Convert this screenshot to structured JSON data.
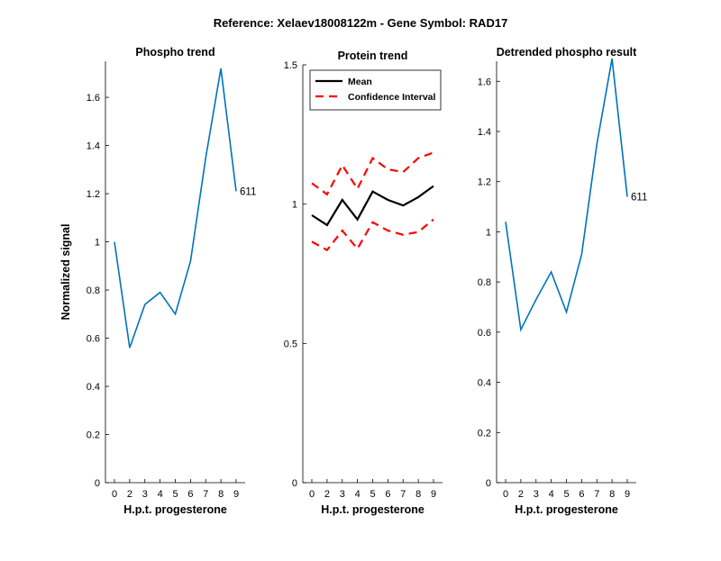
{
  "figure": {
    "suptitle": "Reference:  Xelaev18008122m - Gene Symbol:  RAD17"
  },
  "chart_data": [
    {
      "type": "line",
      "title": "Phospho trend",
      "xlabel": "H.p.t. progesterone",
      "ylabel": "Normalized signal",
      "x_tick_labels": [
        "0",
        "2",
        "3",
        "4",
        "5",
        "6",
        "7",
        "8",
        "9"
      ],
      "y_ticks": [
        0,
        0.2,
        0.4,
        0.6,
        0.8,
        1,
        1.2,
        1.4,
        1.6
      ],
      "y_tick_labels": [
        "0",
        "0.2",
        "0.4",
        "0.6",
        "0.8",
        "1",
        "1.2",
        "1.4",
        "1.6"
      ],
      "ylim": [
        0,
        1.75
      ],
      "series": [
        {
          "color": "#0072BD",
          "values": [
            1.0,
            0.56,
            0.74,
            0.79,
            0.7,
            0.92,
            1.35,
            1.72,
            1.21
          ]
        }
      ],
      "end_label": "611"
    },
    {
      "type": "line",
      "title": "Protein trend",
      "xlabel": "H.p.t. progesterone",
      "ylabel": "",
      "x_tick_labels": [
        "0",
        "2",
        "3",
        "4",
        "5",
        "6",
        "7",
        "8",
        "9"
      ],
      "y_ticks": [
        0,
        0.5,
        1,
        1.5
      ],
      "y_tick_labels": [
        "0",
        "0.5",
        "1",
        "1.5"
      ],
      "ylim": [
        0,
        1.5
      ],
      "legend_position": "top-left",
      "series": [
        {
          "name": "Mean",
          "color": "#000000",
          "dash": "solid",
          "values": [
            0.96,
            0.925,
            1.015,
            0.945,
            1.045,
            1.015,
            0.995,
            1.025,
            1.065
          ]
        },
        {
          "name": "Confidence Interval",
          "color": "#FF0000",
          "dash": "dashed",
          "values": [
            1.075,
            1.035,
            1.14,
            1.055,
            1.165,
            1.125,
            1.115,
            1.165,
            1.185
          ]
        },
        {
          "color": "#FF0000",
          "dash": "dashed",
          "values": [
            0.865,
            0.835,
            0.905,
            0.84,
            0.935,
            0.905,
            0.89,
            0.9,
            0.945
          ]
        }
      ]
    },
    {
      "type": "line",
      "title": "Detrended phospho result",
      "xlabel": "H.p.t. progesterone",
      "ylabel": "",
      "x_tick_labels": [
        "0",
        "2",
        "3",
        "4",
        "5",
        "6",
        "7",
        "8",
        "9"
      ],
      "y_ticks": [
        0,
        0.2,
        0.4,
        0.6,
        0.8,
        1,
        1.2,
        1.4,
        1.6
      ],
      "y_tick_labels": [
        "0",
        "0.2",
        "0.4",
        "0.6",
        "0.8",
        "1",
        "1.2",
        "1.4",
        "1.6"
      ],
      "ylim": [
        0,
        1.68
      ],
      "series": [
        {
          "color": "#0072BD",
          "values": [
            1.04,
            0.61,
            0.73,
            0.84,
            0.68,
            0.91,
            1.35,
            1.69,
            1.14
          ]
        }
      ],
      "end_label": "611"
    }
  ]
}
